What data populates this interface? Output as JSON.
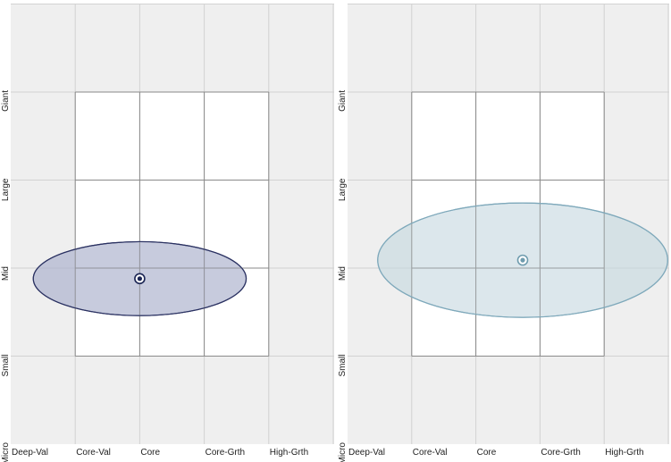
{
  "colors": {
    "outer_bg": "#efefef",
    "inner_bg": "#ffffff",
    "outer_grid": "#d2d2d2",
    "inner_grid": "#8a8a8a",
    "left_fill": "#aab0cc",
    "left_stroke": "#2b3262",
    "right_fill": "#c3d7de",
    "right_stroke": "#7fa9bb"
  },
  "chart_data": [
    {
      "type": "scatter",
      "x_ticks": [
        "Deep-Val",
        "Core-Val",
        "Core",
        "Core-Grth",
        "High-Grth"
      ],
      "y_ticks": [
        "Micro",
        "Small",
        "Mid",
        "Large",
        "Giant"
      ],
      "xlim": [
        0,
        5
      ],
      "ylim": [
        0,
        5
      ],
      "inner_box": {
        "x": [
          1,
          4
        ],
        "y": [
          1,
          4
        ]
      },
      "centroid": {
        "x": 2.0,
        "y": 1.88
      },
      "ellipse": {
        "rx": 1.65,
        "ry": 0.42
      },
      "marker_color": "#1b2554",
      "fill_opacity": 0.55
    },
    {
      "type": "scatter",
      "x_ticks": [
        "Deep-Val",
        "Core-Val",
        "Core",
        "Core-Grth",
        "High-Grth"
      ],
      "y_ticks": [
        "Micro",
        "Small",
        "Mid",
        "Large",
        "Giant"
      ],
      "xlim": [
        0,
        5
      ],
      "ylim": [
        0,
        5
      ],
      "inner_box": {
        "x": [
          1,
          4
        ],
        "y": [
          1,
          4
        ]
      },
      "centroid": {
        "x": 2.73,
        "y": 2.09
      },
      "ellipse": {
        "rx": 2.26,
        "ry": 0.65
      },
      "marker_color": "#6f9cae",
      "fill_opacity": 0.45
    }
  ]
}
